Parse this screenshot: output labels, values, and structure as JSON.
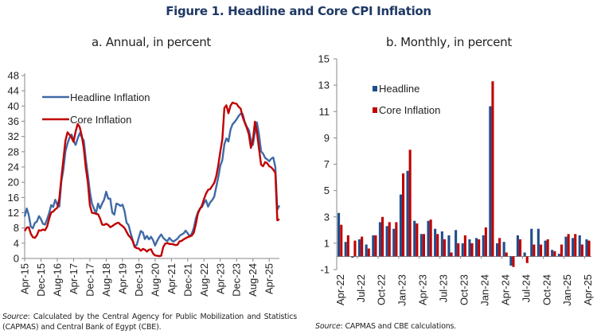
{
  "figure_title": "Figure 1. Headline and Core CPI Inflation",
  "chart_data": [
    {
      "type": "line",
      "title": "a. Annual, in percent",
      "xlabel": "",
      "ylabel": "",
      "ylim": [
        0,
        48
      ],
      "yticks": [
        0,
        4,
        8,
        12,
        16,
        20,
        24,
        28,
        32,
        36,
        40,
        44,
        48
      ],
      "x_tick_labels": [
        "Apr-15",
        "Dec-15",
        "Aug-16",
        "Apr-17",
        "Dec-17",
        "Aug-18",
        "Apr-19",
        "Dec-19",
        "Aug-20",
        "Apr-21",
        "Dec-21",
        "Aug-22",
        "Apr-23",
        "Dec-23",
        "Aug-24",
        "Apr-25"
      ],
      "x_start": "Apr-15",
      "x_end": "Apr-25",
      "frequency": "monthly",
      "legend": "top-left",
      "grid": false,
      "series": [
        {
          "name": "Headline Inflation",
          "color": "#3f6aa6",
          "values": [
            11.0,
            13.1,
            11.4,
            8.4,
            7.9,
            9.3,
            9.7,
            11.1,
            10.3,
            9.1,
            8.9,
            10.3,
            11.9,
            14.0,
            13.5,
            15.4,
            14.1,
            13.6,
            20.2,
            23.3,
            28.1,
            30.2,
            31.7,
            32.5,
            30.9,
            29.8,
            31.5,
            32.9,
            31.8,
            31.0,
            26.0,
            21.9,
            17.5,
            14.4,
            13.1,
            11.8,
            14.4,
            13.1,
            14.4,
            15.4,
            17.5,
            15.7,
            15.7,
            12.0,
            11.5,
            14.4,
            14.2,
            13.8,
            14.1,
            12.5,
            9.4,
            8.7,
            6.7,
            4.8,
            3.1,
            3.6,
            5.5,
            7.2,
            6.8,
            5.1,
            5.9,
            5.0,
            5.7,
            4.8,
            3.4,
            4.6,
            5.6,
            6.3,
            5.4,
            4.9,
            4.5,
            5.4,
            4.8,
            4.4,
            4.8,
            5.2,
            5.9,
            6.3,
            6.6,
            7.3,
            6.6,
            5.8,
            6.5,
            8.0,
            10.5,
            12.1,
            13.1,
            13.5,
            14.6,
            15.3,
            13.6,
            14.7,
            15.3,
            16.2,
            18.7,
            21.3,
            24.4,
            25.8,
            30.0,
            31.5,
            30.7,
            33.8,
            35.2,
            35.8,
            36.5,
            37.4,
            38.0,
            37.9,
            35.8,
            34.6,
            33.7,
            31.2,
            29.8,
            33.3,
            35.7,
            32.5,
            28.1,
            27.5,
            26.4,
            26.0,
            25.5,
            26.2,
            26.5,
            24.0,
            12.8,
            13.9
          ],
          "comment": "Values estimated from chart line shape"
        },
        {
          "name": "Core Inflation",
          "color": "#c00000",
          "values": [
            7.2,
            8.1,
            8.2,
            6.5,
            5.6,
            5.4,
            6.1,
            7.4,
            7.3,
            7.6,
            7.4,
            8.4,
            10.4,
            12.1,
            12.3,
            12.9,
            13.3,
            15.7,
            21.1,
            25.9,
            30.9,
            33.1,
            32.5,
            31.7,
            30.6,
            33.3,
            35.3,
            34.5,
            32.2,
            29.0,
            23.8,
            19.9,
            14.0,
            12.0,
            11.9,
            11.7,
            11.6,
            10.5,
            8.9,
            8.8,
            9.1,
            8.8,
            8.2,
            8.5,
            8.9,
            9.2,
            9.4,
            8.9,
            8.5,
            8.0,
            7.0,
            6.0,
            5.5,
            4.6,
            3.0,
            2.7,
            2.6,
            2.0,
            2.5,
            2.3,
            1.8,
            2.3,
            2.4,
            1.3,
            0.8,
            0.7,
            0.6,
            0.7,
            3.0,
            3.9,
            4.0,
            3.8,
            3.8,
            3.7,
            3.5,
            3.6,
            4.5,
            4.6,
            5.0,
            5.3,
            5.6,
            5.8,
            6.0,
            6.8,
            9.0,
            11.8,
            13.0,
            13.9,
            15.6,
            17.0,
            18.0,
            18.2,
            19.0,
            19.8,
            21.5,
            24.4,
            28.1,
            31.2,
            39.5,
            40.2,
            38.1,
            40.1,
            40.9,
            40.7,
            40.6,
            39.8,
            39.3,
            37.1,
            35.6,
            34.3,
            32.6,
            29.0,
            31.0,
            35.9,
            33.0,
            28.8,
            24.6,
            24.2,
            25.3,
            25.0,
            24.2,
            23.9,
            23.3,
            22.5,
            10.0,
            10.3
          ],
          "comment": "Values estimated from chart line shape"
        }
      ]
    },
    {
      "type": "bar",
      "title": "b. Monthly, in percent",
      "xlabel": "",
      "ylabel": "",
      "ylim": [
        -1,
        15
      ],
      "yticks": [
        -1,
        1,
        3,
        5,
        7,
        9,
        11,
        13,
        15
      ],
      "x_tick_labels": [
        "Apr-22",
        "Jul-22",
        "Oct-22",
        "Jan-23",
        "Apr-23",
        "Jul-23",
        "Oct-23",
        "Jan-24",
        "Apr-24",
        "Jul-24",
        "Oct-24",
        "Jan-25",
        "Apr-25"
      ],
      "categories": [
        "Apr-22",
        "May-22",
        "Jun-22",
        "Jul-22",
        "Aug-22",
        "Sep-22",
        "Oct-22",
        "Nov-22",
        "Dec-22",
        "Jan-23",
        "Feb-23",
        "Mar-23",
        "Apr-23",
        "May-23",
        "Jun-23",
        "Jul-23",
        "Aug-23",
        "Sep-23",
        "Oct-23",
        "Nov-23",
        "Dec-23",
        "Jan-24",
        "Feb-24",
        "Mar-24",
        "Apr-24",
        "May-24",
        "Jun-24",
        "Jul-24",
        "Aug-24",
        "Sep-24",
        "Oct-24",
        "Nov-24",
        "Dec-24",
        "Jan-25",
        "Feb-25",
        "Mar-25",
        "Apr-25"
      ],
      "legend": "top-left",
      "grid": false,
      "series": [
        {
          "name": "Headline",
          "color": "#1f4e8c",
          "values": [
            3.3,
            1.1,
            -0.1,
            1.3,
            0.9,
            1.6,
            2.6,
            2.3,
            2.1,
            4.7,
            6.5,
            2.7,
            1.7,
            2.7,
            2.1,
            1.9,
            1.6,
            2.0,
            1.0,
            1.3,
            1.4,
            1.6,
            11.4,
            1.0,
            1.1,
            -0.7,
            1.6,
            0.3,
            2.1,
            2.1,
            1.2,
            0.5,
            0.2,
            1.5,
            1.4,
            1.6,
            1.3
          ]
        },
        {
          "name": "Core Inflation",
          "color": "#c00000",
          "values": [
            2.4,
            1.6,
            1.2,
            1.5,
            0.6,
            1.6,
            3.0,
            2.6,
            2.6,
            6.3,
            8.1,
            2.5,
            1.7,
            2.8,
            1.7,
            1.3,
            0.3,
            1.0,
            1.6,
            1.0,
            1.3,
            2.2,
            13.3,
            1.4,
            0.3,
            -0.8,
            1.3,
            -0.5,
            0.9,
            0.9,
            1.3,
            0.4,
            0.9,
            1.7,
            1.7,
            0.9,
            1.2
          ]
        }
      ]
    }
  ],
  "legend_a": {
    "headline": "Headline Inflation",
    "core": "Core Inflation"
  },
  "legend_b": {
    "headline": "Headline",
    "core": "Core Inflation"
  },
  "source_a": {
    "label": "Source",
    "text": ": Calculated by the Central Agency for Public Mobilization and Statistics (CAPMAS) and Central Bank of Egypt (CBE)."
  },
  "source_b": {
    "label": "Source",
    "text": ": CAPMAS and CBE calculations."
  }
}
